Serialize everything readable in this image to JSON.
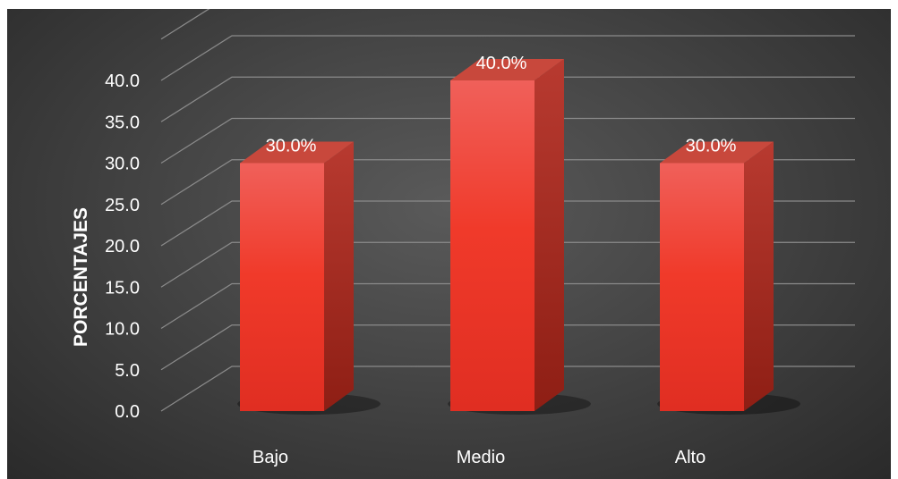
{
  "chart_data": {
    "type": "bar",
    "style": "3d-column",
    "categories": [
      "Bajo",
      "Medio",
      "Alto"
    ],
    "values": [
      30.0,
      40.0,
      30.0
    ],
    "data_labels": [
      "30.0%",
      "40.0%",
      "30.0%"
    ],
    "ylabel": "PORCENTAJES",
    "xlabel": "",
    "ylim": [
      0,
      40
    ],
    "yticks": [
      "0.0",
      "5.0",
      "10.0",
      "15.0",
      "20.0",
      "25.0",
      "30.0",
      "35.0",
      "40.0"
    ],
    "grid": true,
    "legend": "none",
    "colors": {
      "background": "#3f3f3f",
      "bar_front": "#ef3a2a",
      "bar_side": "#a82418",
      "bar_top": "#c8483c",
      "gridline": "#8a8a8a",
      "text": "#ffffff"
    }
  }
}
